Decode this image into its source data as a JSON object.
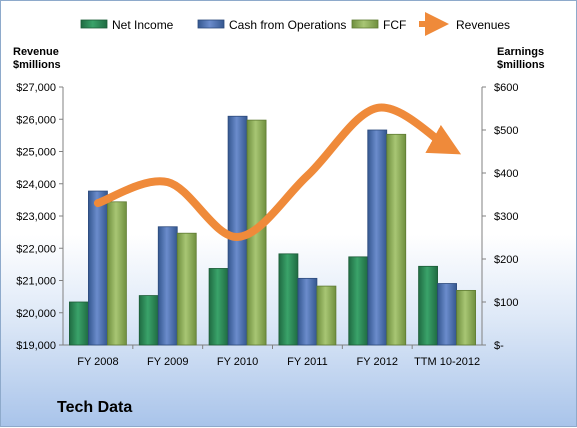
{
  "company": "Tech Data",
  "left_axis_title": [
    "Revenue",
    "$millions"
  ],
  "right_axis_title": [
    "Earnings",
    "$millions"
  ],
  "colors": {
    "net_income": "#2e8b57",
    "cash_from_operations": "#4f73b0",
    "fcf": "#8fb05a",
    "revenues": "#ef8a3a"
  },
  "chart_data": {
    "type": "bar",
    "categories": [
      "FY 2008",
      "FY 2009",
      "FY 2010",
      "FY 2011",
      "FY 2012",
      "TTM 10-2012"
    ],
    "series": [
      {
        "name": "Net Income",
        "axis": "right",
        "values": [
          100,
          115,
          178,
          212,
          205,
          183
        ]
      },
      {
        "name": "Cash from Operations",
        "axis": "right",
        "values": [
          358,
          275,
          532,
          155,
          500,
          143
        ]
      },
      {
        "name": "FCF",
        "axis": "right",
        "values": [
          333,
          260,
          523,
          137,
          490,
          127
        ]
      },
      {
        "name": "Revenues",
        "axis": "left",
        "type": "line",
        "values": [
          23400,
          24050,
          22350,
          24250,
          26350,
          25150
        ]
      }
    ],
    "left_axis": {
      "min": 19000,
      "max": 27000,
      "step": 1000,
      "tick_labels": [
        "$19,000",
        "$20,000",
        "$21,000",
        "$22,000",
        "$23,000",
        "$24,000",
        "$25,000",
        "$26,000",
        "$27,000"
      ]
    },
    "right_axis": {
      "min": 0,
      "max": 600,
      "step": 100,
      "tick_labels": [
        "$-",
        "$100",
        "$200",
        "$300",
        "$400",
        "$500",
        "$600"
      ]
    },
    "grid": false,
    "legend": "top"
  }
}
